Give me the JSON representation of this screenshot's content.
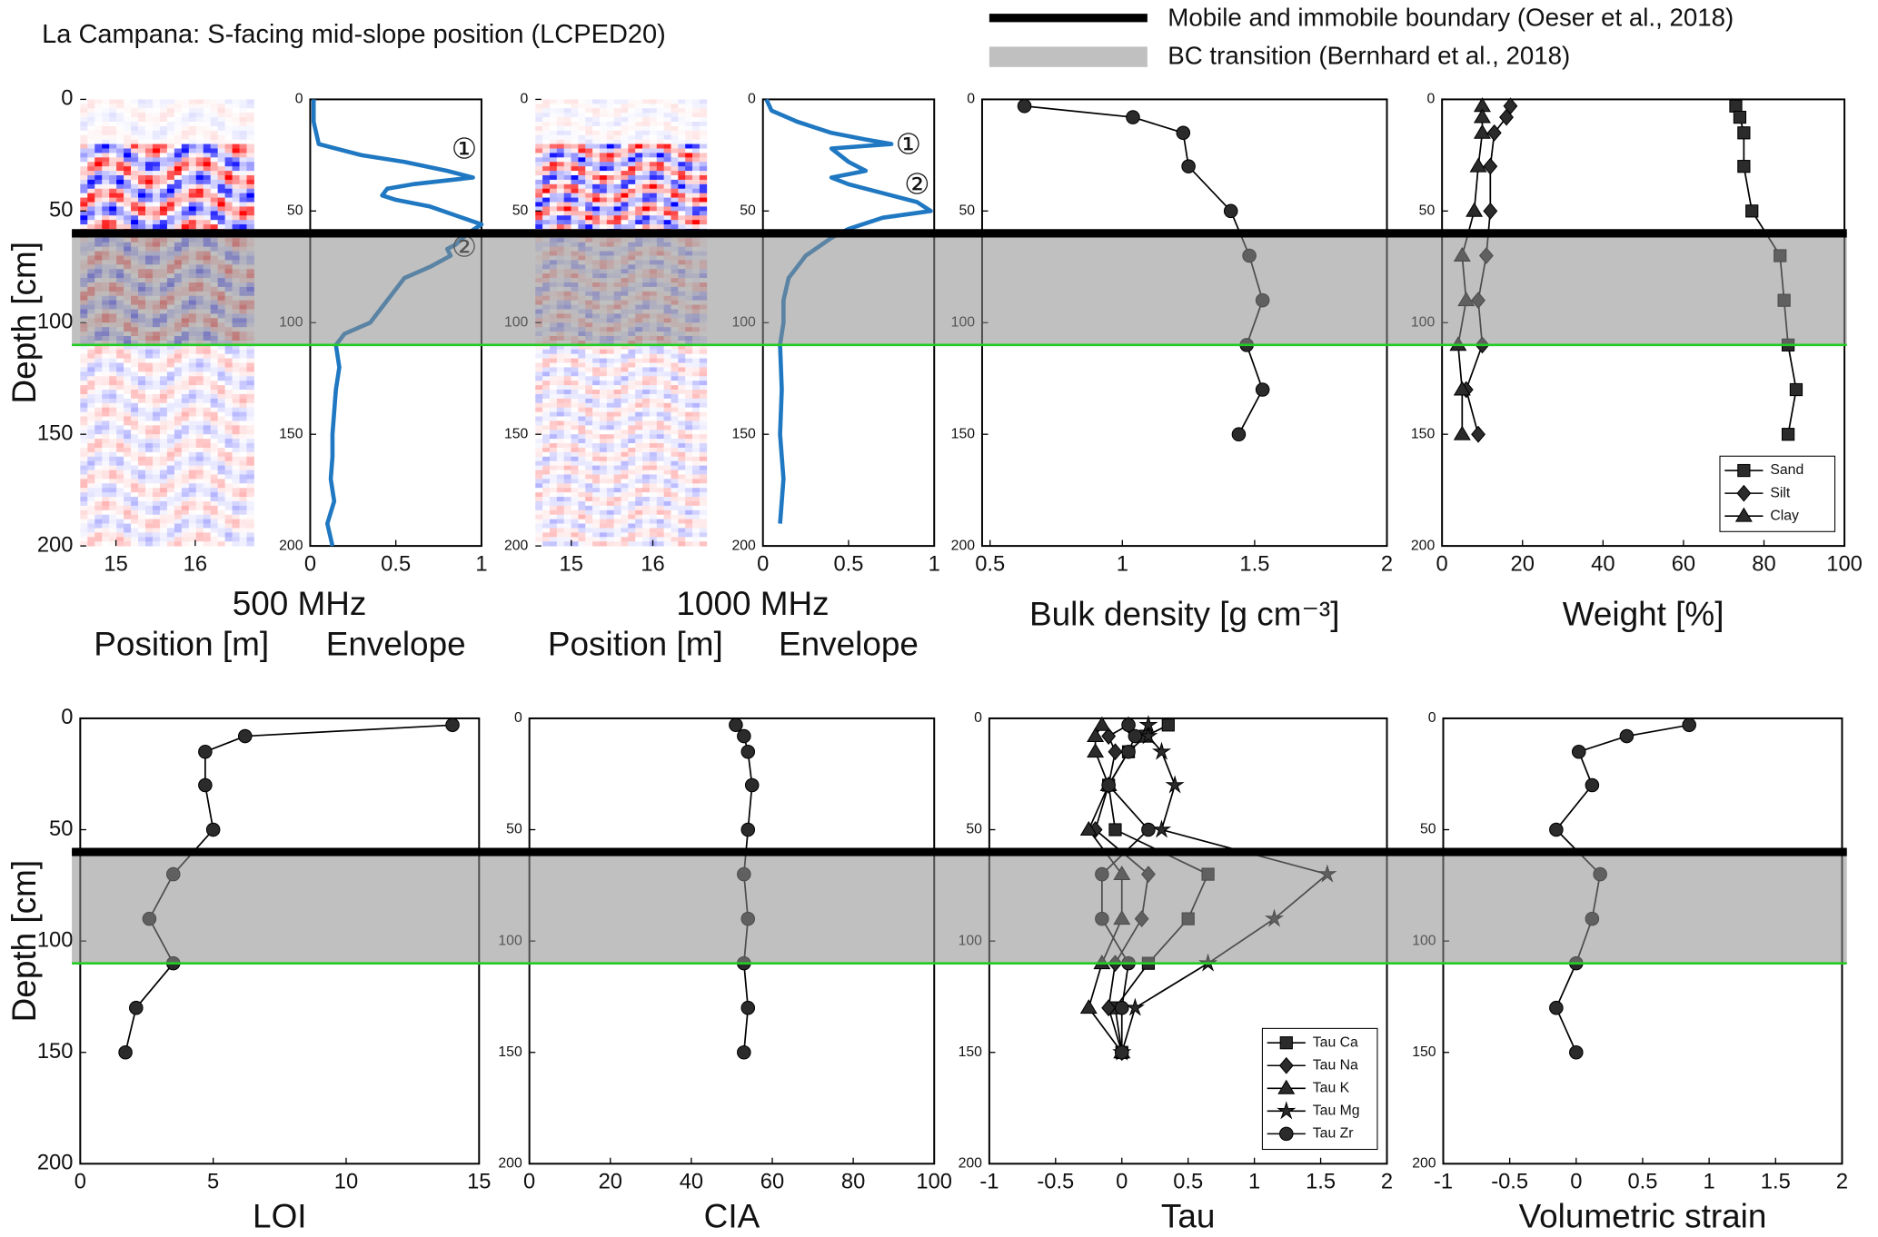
{
  "title": "La Campana: S-facing mid-slope position (LCPED20)",
  "legend": [
    {
      "label": "Mobile and immobile boundary (Oeser et al., 2018)",
      "color": "#000000"
    },
    {
      "label": "BC transition  (Bernhard et al., 2018)",
      "color": "#8c8c8c"
    }
  ],
  "boundary_depth": 60,
  "bc_transition": [
    60,
    110
  ],
  "bc_line_color": "#22cc22",
  "chart_data": [
    {
      "type": "radargram",
      "frequency": "500 MHz",
      "xlabel": "Position [m]",
      "ylabel": "Depth [cm]",
      "xlim": [
        14.55,
        16.74
      ],
      "xticks": [
        15,
        16
      ],
      "ylim": [
        0,
        200
      ],
      "yticks": [
        0,
        50,
        100,
        150,
        200
      ]
    },
    {
      "type": "profile",
      "xlabel": "Envelope",
      "xlim": [
        0,
        1
      ],
      "xticks": [
        0,
        0.5,
        1
      ],
      "ylim": [
        0,
        200
      ],
      "yticks": [
        0,
        50,
        100,
        150,
        200
      ],
      "depth": [
        0,
        10,
        20,
        25,
        28,
        32,
        35,
        38,
        40,
        43,
        45,
        48,
        52,
        56,
        60,
        65,
        67,
        70,
        75,
        80,
        90,
        100,
        105,
        110,
        120,
        130,
        140,
        150,
        160,
        170,
        180,
        190,
        200
      ],
      "series": [
        {
          "color": "#1f78c1",
          "values": [
            0.02,
            0.02,
            0.05,
            0.3,
            0.55,
            0.8,
            0.95,
            0.6,
            0.45,
            0.42,
            0.5,
            0.7,
            0.85,
            1.0,
            0.92,
            0.85,
            0.8,
            0.82,
            0.7,
            0.55,
            0.45,
            0.35,
            0.2,
            0.15,
            0.17,
            0.15,
            0.14,
            0.13,
            0.13,
            0.12,
            0.14,
            0.1,
            0.13
          ]
        }
      ],
      "annotations": [
        {
          "text": "①",
          "x": 0.9,
          "y": 23
        },
        {
          "text": "②",
          "x": 0.9,
          "y": 67
        }
      ]
    },
    {
      "type": "radargram",
      "frequency": "1000 MHz",
      "xlabel": "Position [m]",
      "xlim": [
        14.56,
        16.66
      ],
      "xticks": [
        15,
        16
      ],
      "ylim": [
        0,
        200
      ],
      "yticks": [
        0,
        50,
        100,
        150,
        200
      ]
    },
    {
      "type": "profile",
      "xlabel": "Envelope",
      "xlim": [
        0,
        1
      ],
      "xticks": [
        0,
        0.5,
        1
      ],
      "ylim": [
        0,
        200
      ],
      "yticks": [
        0,
        50,
        100,
        150,
        200
      ],
      "depth": [
        0,
        5,
        10,
        15,
        18,
        20,
        22,
        25,
        28,
        32,
        35,
        38,
        42,
        46,
        50,
        53,
        58,
        62,
        70,
        80,
        90,
        100,
        110,
        130,
        150,
        170,
        180,
        190
      ],
      "series": [
        {
          "color": "#1f78c1",
          "values": [
            0.02,
            0.05,
            0.2,
            0.4,
            0.6,
            0.75,
            0.4,
            0.45,
            0.5,
            0.6,
            0.4,
            0.5,
            0.7,
            0.9,
            0.98,
            0.7,
            0.5,
            0.4,
            0.25,
            0.15,
            0.12,
            0.12,
            0.1,
            0.11,
            0.1,
            0.12,
            0.11,
            0.1
          ]
        }
      ],
      "annotations": [
        {
          "text": "①",
          "x": 0.85,
          "y": 21
        },
        {
          "text": "②",
          "x": 0.9,
          "y": 39
        }
      ]
    },
    {
      "type": "profile",
      "xlabel": "Bulk density [g cm⁻³]",
      "xlim": [
        0.47,
        2
      ],
      "xticks": [
        0.5,
        1,
        1.5,
        2
      ],
      "ylim": [
        0,
        200
      ],
      "yticks": [
        0,
        50,
        100,
        150,
        200
      ],
      "depth": [
        3,
        8,
        15,
        30,
        50,
        70,
        90,
        110,
        130,
        150
      ],
      "series": [
        {
          "color": "#2b2b2b",
          "marker": "circle",
          "values": [
            0.63,
            1.04,
            1.23,
            1.25,
            1.41,
            1.48,
            1.53,
            1.47,
            1.53,
            1.44
          ]
        }
      ]
    },
    {
      "type": "profile",
      "xlabel": "Weight [%]",
      "xlim": [
        0,
        100
      ],
      "xticks": [
        0,
        20,
        40,
        60,
        80,
        100
      ],
      "ylim": [
        0,
        200
      ],
      "yticks": [
        0,
        50,
        100,
        150,
        200
      ],
      "legend": "lower right",
      "depth": [
        3,
        8,
        15,
        30,
        50,
        70,
        90,
        110,
        130,
        150
      ],
      "series": [
        {
          "name": "Sand",
          "color": "#2b2b2b",
          "marker": "square",
          "values": [
            73,
            74,
            75,
            75,
            77,
            84,
            85,
            86,
            88,
            86
          ]
        },
        {
          "name": "Silt",
          "color": "#2b2b2b",
          "marker": "diamond",
          "values": [
            17,
            16,
            13,
            12,
            12,
            11,
            9,
            10,
            6,
            9
          ]
        },
        {
          "name": "Clay",
          "color": "#2b2b2b",
          "marker": "triangle",
          "values": [
            10,
            10,
            10,
            9,
            8,
            5,
            6,
            4,
            5,
            5
          ]
        }
      ]
    },
    {
      "type": "profile",
      "xlabel": "LOI",
      "ylabel": "Depth [cm]",
      "xlim": [
        0,
        15
      ],
      "xticks": [
        0,
        5,
        10,
        15
      ],
      "ylim": [
        0,
        200
      ],
      "yticks": [
        0,
        50,
        100,
        150,
        200
      ],
      "depth": [
        3,
        8,
        15,
        30,
        50,
        70,
        90,
        110,
        130,
        150
      ],
      "series": [
        {
          "color": "#2b2b2b",
          "marker": "circle",
          "values": [
            14,
            6.2,
            4.7,
            4.7,
            5,
            3.5,
            2.6,
            3.5,
            2.1,
            1.7
          ]
        }
      ]
    },
    {
      "type": "profile",
      "xlabel": "CIA",
      "xlim": [
        0,
        100
      ],
      "xticks": [
        0,
        20,
        40,
        60,
        80,
        100
      ],
      "ylim": [
        0,
        200
      ],
      "yticks": [
        0,
        50,
        100,
        150,
        200
      ],
      "depth": [
        3,
        8,
        15,
        30,
        50,
        70,
        90,
        110,
        130,
        150
      ],
      "series": [
        {
          "color": "#2b2b2b",
          "marker": "circle",
          "values": [
            51,
            53,
            54,
            55,
            54,
            53,
            54,
            53,
            54,
            53
          ]
        }
      ]
    },
    {
      "type": "profile",
      "xlabel": "Tau",
      "xlim": [
        -1,
        2
      ],
      "xticks": [
        -1,
        -0.5,
        0,
        0.5,
        1,
        1.5,
        2
      ],
      "ylim": [
        0,
        200
      ],
      "yticks": [
        0,
        50,
        100,
        150,
        200
      ],
      "legend": "lower right",
      "depth": [
        3,
        8,
        15,
        30,
        50,
        70,
        90,
        110,
        130,
        150
      ],
      "series": [
        {
          "name": "Tau Ca",
          "color": "#2b2b2b",
          "marker": "square",
          "values": [
            0.35,
            0.18,
            0.05,
            -0.1,
            -0.05,
            0.65,
            0.5,
            0.2,
            -0.05,
            0
          ]
        },
        {
          "name": "Tau Na",
          "color": "#2b2b2b",
          "marker": "diamond",
          "values": [
            0.05,
            -0.1,
            -0.05,
            -0.1,
            -0.2,
            0.2,
            0.15,
            -0.05,
            -0.1,
            0
          ]
        },
        {
          "name": "Tau K",
          "color": "#2b2b2b",
          "marker": "triangle",
          "values": [
            -0.15,
            -0.2,
            -0.2,
            -0.1,
            -0.25,
            0,
            0,
            -0.15,
            -0.25,
            0
          ]
        },
        {
          "name": "Tau Mg",
          "color": "#2b2b2b",
          "marker": "star",
          "values": [
            0.2,
            0.2,
            0.3,
            0.4,
            0.3,
            1.55,
            1.15,
            0.65,
            0.1,
            0
          ]
        },
        {
          "name": "Tau Zr",
          "color": "#2b2b2b",
          "marker": "circle",
          "values": [
            0.05,
            0.1,
            0.05,
            -0.1,
            0.2,
            -0.15,
            -0.15,
            0.05,
            0,
            0
          ]
        }
      ]
    },
    {
      "type": "profile",
      "xlabel": "Volumetric strain",
      "xlim": [
        -1,
        2
      ],
      "xticks": [
        -1,
        -0.5,
        0,
        0.5,
        1,
        1.5,
        2
      ],
      "ylim": [
        0,
        200
      ],
      "yticks": [
        0,
        50,
        100,
        150,
        200
      ],
      "depth": [
        3,
        8,
        15,
        30,
        50,
        70,
        90,
        110,
        130,
        150
      ],
      "series": [
        {
          "color": "#2b2b2b",
          "marker": "circle",
          "values": [
            0.85,
            0.38,
            0.02,
            0.12,
            -0.15,
            0.18,
            0.12,
            0,
            -0.15,
            0
          ]
        }
      ]
    }
  ]
}
